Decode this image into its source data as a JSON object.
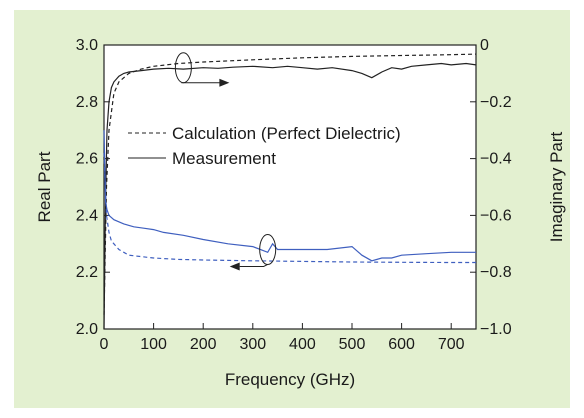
{
  "chart_data": {
    "type": "line",
    "xlabel": "Frequency (GHz)",
    "ylabel_left": "Real Part",
    "ylabel_right": "Imaginary Part",
    "xlim": [
      0,
      750
    ],
    "ylim_left": [
      2.0,
      3.0
    ],
    "ylim_right": [
      -1.0,
      0.0
    ],
    "x_ticks": [
      "0",
      "100",
      "200",
      "300",
      "400",
      "500",
      "600",
      "700"
    ],
    "y_left_ticks": [
      "2.0",
      "2.2",
      "2.4",
      "2.6",
      "2.8",
      "3.0"
    ],
    "y_right_ticks": [
      "−1.0",
      "−0.8",
      "−0.6",
      "−0.4",
      "−0.2",
      "0"
    ],
    "grid": false,
    "legend": {
      "placement": "center",
      "entries": [
        {
          "label": "Calculation (Perfect Dielectric)",
          "style": "dashed"
        },
        {
          "label": "Measurement",
          "style": "solid"
        }
      ]
    },
    "series": [
      {
        "name": "Calculation (Perfect Dielectric)",
        "part": "real",
        "axis": "left",
        "style": "dashed",
        "color": "#222222",
        "x": [
          0,
          5,
          10,
          20,
          30,
          50,
          75,
          100,
          150,
          200,
          300,
          400,
          500,
          600,
          700,
          750
        ],
        "y": [
          2.05,
          2.5,
          2.7,
          2.83,
          2.87,
          2.9,
          2.915,
          2.925,
          2.935,
          2.94,
          2.948,
          2.955,
          2.96,
          2.963,
          2.966,
          2.968
        ]
      },
      {
        "name": "Measurement",
        "part": "real",
        "axis": "left",
        "style": "solid",
        "color": "#222222",
        "x": [
          0,
          3,
          6,
          10,
          15,
          20,
          30,
          40,
          50,
          75,
          100,
          130,
          160,
          200,
          230,
          260,
          300,
          340,
          370,
          400,
          430,
          460,
          500,
          520,
          540,
          560,
          580,
          600,
          620,
          650,
          680,
          700,
          730,
          750
        ],
        "y": [
          2.0,
          2.45,
          2.7,
          2.8,
          2.85,
          2.87,
          2.89,
          2.9,
          2.905,
          2.91,
          2.915,
          2.918,
          2.915,
          2.92,
          2.918,
          2.922,
          2.925,
          2.92,
          2.925,
          2.92,
          2.915,
          2.92,
          2.91,
          2.9,
          2.885,
          2.905,
          2.92,
          2.915,
          2.925,
          2.93,
          2.935,
          2.93,
          2.935,
          2.93
        ]
      },
      {
        "name": "Calculation (Perfect Dielectric)",
        "part": "imaginary",
        "axis": "right",
        "style": "dashed",
        "color": "#3f5fbf",
        "x": [
          0,
          5,
          10,
          15,
          20,
          30,
          40,
          50,
          75,
          100,
          150,
          200,
          300,
          400,
          500,
          600,
          700,
          750
        ],
        "y": [
          -0.38,
          -0.6,
          -0.66,
          -0.69,
          -0.7,
          -0.72,
          -0.73,
          -0.74,
          -0.745,
          -0.75,
          -0.755,
          -0.757,
          -0.76,
          -0.762,
          -0.764,
          -0.765,
          -0.766,
          -0.766
        ]
      },
      {
        "name": "Measurement",
        "part": "imaginary",
        "axis": "right",
        "style": "solid",
        "color": "#3f5fbf",
        "x": [
          0,
          3,
          6,
          10,
          20,
          40,
          60,
          80,
          100,
          120,
          160,
          200,
          250,
          300,
          330,
          340,
          350,
          400,
          450,
          500,
          520,
          540,
          560,
          580,
          600,
          650,
          700,
          750
        ],
        "y": [
          -0.3,
          -0.55,
          -0.58,
          -0.6,
          -0.615,
          -0.63,
          -0.64,
          -0.645,
          -0.65,
          -0.66,
          -0.67,
          -0.685,
          -0.7,
          -0.71,
          -0.73,
          -0.7,
          -0.72,
          -0.72,
          -0.72,
          -0.71,
          -0.74,
          -0.76,
          -0.75,
          -0.75,
          -0.74,
          -0.735,
          -0.73,
          -0.73
        ]
      }
    ],
    "annotations": [
      {
        "type": "ellipse-arrow",
        "x": 160,
        "axis": "left",
        "y": 2.92,
        "arrow_to": "right"
      },
      {
        "type": "ellipse-arrow",
        "x": 330,
        "axis": "right",
        "y": -0.72,
        "arrow_to": "left"
      }
    ]
  }
}
